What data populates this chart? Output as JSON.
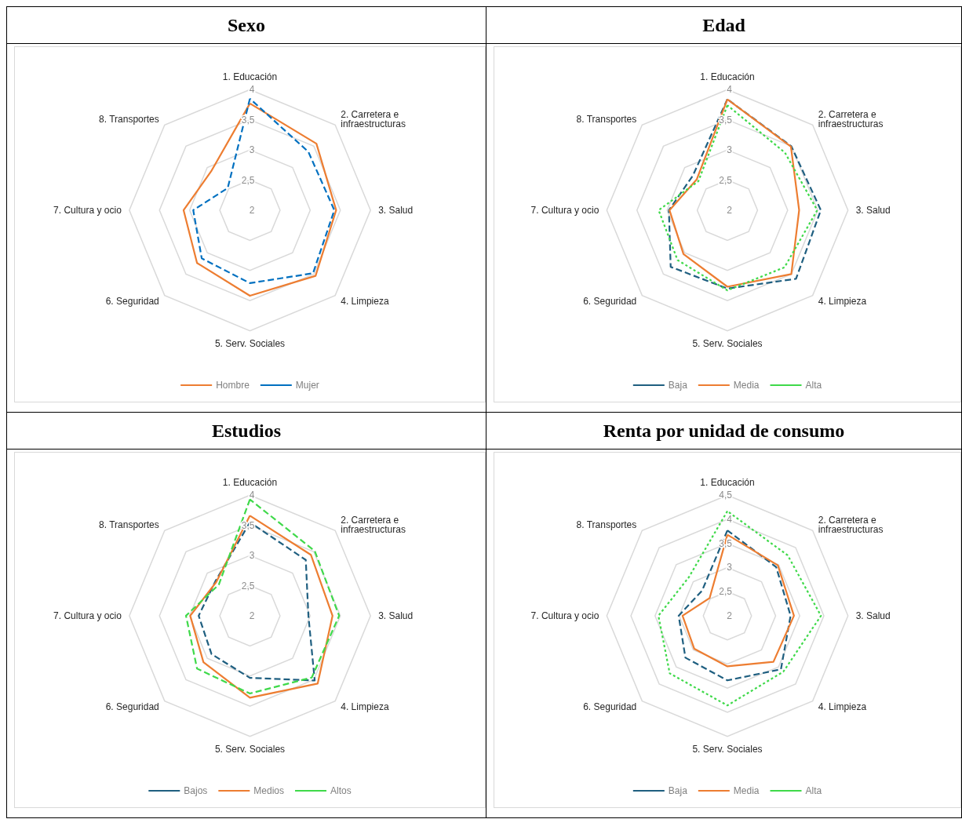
{
  "chart_data": [
    {
      "type": "radar",
      "title": "Sexo",
      "categories": [
        "1. Educación",
        "2. Carretera e infraestructuras",
        "3. Salud",
        "4. Limpieza",
        "5. Serv. Sociales",
        "6. Seguridad",
        "7. Cultura y ocio",
        "8. Transportes"
      ],
      "ylim": [
        2,
        4
      ],
      "yticks": [
        2,
        {
          "value": 2.5,
          "label": "2,5"
        },
        3,
        {
          "value": 3.5,
          "label": "3,5"
        },
        4
      ],
      "legend": "bottom",
      "series": [
        {
          "name": "Hombre",
          "color": "#ed7d31",
          "line_style": "solid",
          "values": [
            3.77,
            3.56,
            3.43,
            3.54,
            3.42,
            3.24,
            3.1,
            2.91
          ]
        },
        {
          "name": "Mujer",
          "color": "#0070c0",
          "line_style": "dashed",
          "values": [
            3.85,
            3.37,
            3.4,
            3.48,
            3.21,
            3.13,
            2.94,
            2.52
          ]
        }
      ]
    },
    {
      "type": "radar",
      "title": "Edad",
      "categories": [
        "1. Educación",
        "2. Carretera e infraestructuras",
        "3. Salud",
        "4. Limpieza",
        "5. Serv. Sociales",
        "6. Seguridad",
        "7. Cultura y ocio",
        "8. Transportes"
      ],
      "ylim": [
        2,
        4
      ],
      "yticks": [
        2,
        {
          "value": 2.5,
          "label": "2,5"
        },
        3,
        {
          "value": 3.5,
          "label": "3,5"
        },
        4
      ],
      "legend": "bottom",
      "series": [
        {
          "name": "Baja",
          "color": "#1f5f80",
          "line_style": "dashed",
          "values": [
            3.84,
            3.5,
            3.55,
            3.61,
            3.3,
            3.33,
            2.97,
            2.81
          ]
        },
        {
          "name": "Media",
          "color": "#ed7d31",
          "line_style": "solid",
          "values": [
            3.84,
            3.49,
            3.19,
            3.5,
            3.27,
            3.03,
            2.96,
            2.72
          ]
        },
        {
          "name": "Alta",
          "color": "#3fd94a",
          "line_style": "dotted",
          "values": [
            3.74,
            3.35,
            3.49,
            3.34,
            3.33,
            3.17,
            3.14,
            2.68
          ]
        }
      ]
    },
    {
      "type": "radar",
      "title": "Estudios",
      "categories": [
        "1. Educación",
        "2. Carretera e infraestructuras",
        "3. Salud",
        "4. Limpieza",
        "5. Serv. Sociales",
        "6. Seguridad",
        "7. Cultura y ocio",
        "8. Transportes"
      ],
      "ylim": [
        2,
        4
      ],
      "yticks": [
        2,
        {
          "value": 2.5,
          "label": "2,5"
        },
        3,
        {
          "value": 3.5,
          "label": "3,5"
        },
        4
      ],
      "legend": "bottom",
      "series": [
        {
          "name": "Bajos",
          "color": "#1f5f80",
          "line_style": "dashed",
          "values": [
            3.55,
            3.31,
            2.97,
            3.52,
            3.03,
            2.9,
            2.85,
            2.81
          ]
        },
        {
          "name": "Medios",
          "color": "#ed7d31",
          "line_style": "solid",
          "values": [
            3.66,
            3.43,
            3.37,
            3.59,
            3.36,
            3.09,
            2.99,
            2.79
          ]
        },
        {
          "name": "Altos",
          "color": "#3fd94a",
          "line_style": "dashed",
          "values": [
            3.93,
            3.52,
            3.48,
            3.45,
            3.29,
            3.24,
            3.06,
            2.73
          ]
        }
      ]
    },
    {
      "type": "radar",
      "title": "Renta por unidad de consumo",
      "categories": [
        "1. Educación",
        "2. Carretera e infraestructuras",
        "3. Salud",
        "4. Limpieza",
        "5. Serv. Sociales",
        "6. Seguridad",
        "7. Cultura y ocio",
        "8. Transportes"
      ],
      "ylim": [
        2,
        4.5
      ],
      "yticks": [
        2,
        {
          "value": 2.5,
          "label": "2,5"
        },
        3,
        {
          "value": 3.5,
          "label": "3,5"
        },
        4,
        {
          "value": 4.5,
          "label": "4,5"
        }
      ],
      "legend": "bottom",
      "series": [
        {
          "name": "Baja",
          "color": "#1f5f80",
          "line_style": "dashed",
          "values": [
            3.77,
            3.43,
            3.31,
            3.57,
            3.34,
            3.23,
            3.01,
            2.74
          ]
        },
        {
          "name": "Media",
          "color": "#ed7d31",
          "line_style": "solid",
          "values": [
            3.68,
            3.48,
            3.38,
            3.35,
            3.05,
            2.97,
            2.93,
            2.52
          ]
        },
        {
          "name": "Alta",
          "color": "#3fd94a",
          "line_style": "dotted",
          "values": [
            4.17,
            3.77,
            3.94,
            3.64,
            3.86,
            3.69,
            3.43,
            3.13
          ]
        }
      ]
    }
  ]
}
